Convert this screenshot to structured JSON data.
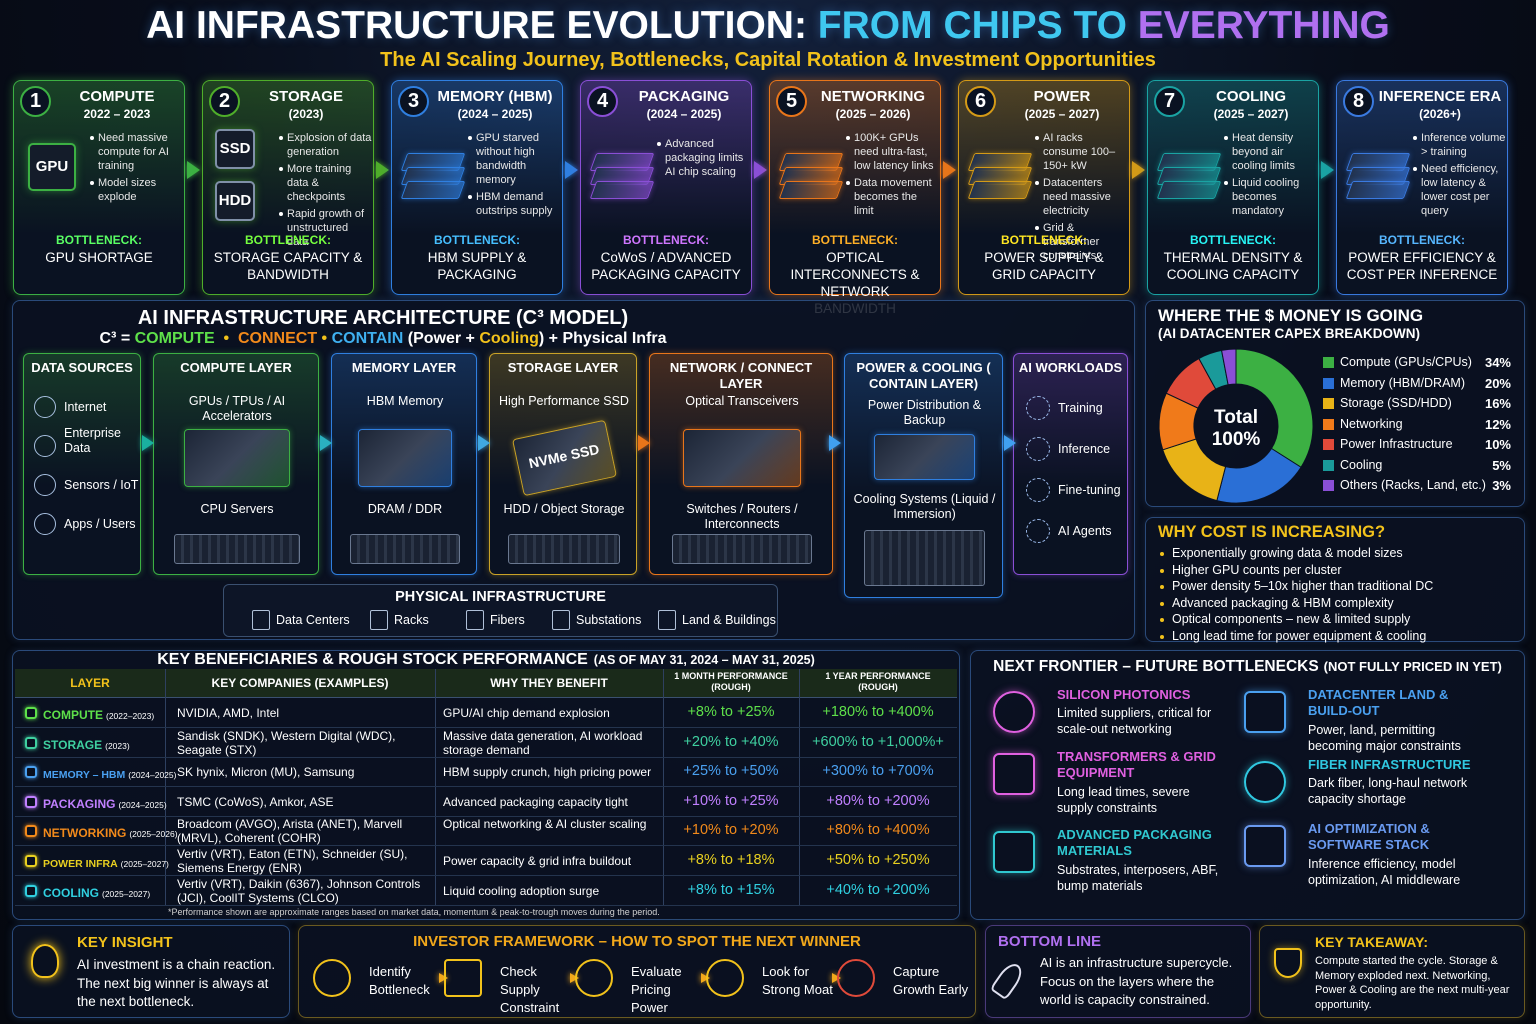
{
  "header": {
    "title_parts": [
      {
        "text": "AI INFRASTRUCTURE EVOLUTION: ",
        "color": "#ffffff"
      },
      {
        "text": "FROM CHIPS TO ",
        "color": "#3fc8f0"
      },
      {
        "text": "EVERYTHING",
        "color": "#b070f0"
      }
    ],
    "subtitle": "The AI Scaling Journey, Bottlenecks, Capital Rotation & Investment Opportunities"
  },
  "stages": [
    {
      "number": "1",
      "title": "COMPUTE",
      "years": "2022 – 2023",
      "color": "#3cb043",
      "icon_labels": [
        "GPU"
      ],
      "bullets": [
        "Need massive compute for AI training",
        "Model sizes explode"
      ],
      "bottleneck_label": "BOTTLENECK:",
      "bottleneck": "GPU SHORTAGE"
    },
    {
      "number": "2",
      "title": "STORAGE",
      "years": "(2023)",
      "color": "#4fae2a",
      "icon_labels": [
        "SSD",
        "HDD"
      ],
      "bullets": [
        "Explosion of data generation",
        "More training data & checkpoints",
        "Rapid growth of unstructured data"
      ],
      "bottleneck_label": "BOTTLENECK:",
      "bottleneck": "STORAGE CAPACITY & BANDWIDTH"
    },
    {
      "number": "3",
      "title": "MEMORY (HBM)",
      "years": "(2024 – 2025)",
      "color": "#2f7fe0",
      "bullets": [
        "GPU starved without high bandwidth memory",
        "HBM demand outstrips supply"
      ],
      "bottleneck_label": "BOTTLENECK:",
      "bottleneck": "HBM SUPPLY & PACKAGING"
    },
    {
      "number": "4",
      "title": "PACKAGING",
      "years": "(2024 – 2025)",
      "color": "#8a4fd6",
      "bullets": [
        "Advanced packaging limits AI chip scaling"
      ],
      "bottleneck_label": "BOTTLENECK:",
      "bottleneck": "CoWoS / ADVANCED PACKAGING CAPACITY"
    },
    {
      "number": "5",
      "title": "NETWORKING",
      "years": "(2025 – 2026)",
      "color": "#e8751a",
      "bullets": [
        "100K+ GPUs need ultra-fast, low latency links",
        "Data movement becomes the limit"
      ],
      "bottleneck_label": "BOTTLENECK:",
      "bottleneck": "OPTICAL INTERCONNECTS & NETWORK BANDWIDTH"
    },
    {
      "number": "6",
      "title": "POWER",
      "years": "(2025 – 2027)",
      "color": "#d49a17",
      "bullets": [
        "AI racks consume 100–150+ kW",
        "Datacenters need massive electricity",
        "Grid & transformer constraints"
      ],
      "bottleneck_label": "BOTTLENECK:",
      "bottleneck": "POWER SUPPLY & GRID CAPACITY"
    },
    {
      "number": "7",
      "title": "COOLING",
      "years": "(2025 – 2027)",
      "color": "#1aa3a3",
      "bullets": [
        "Heat density beyond air cooling limits",
        "Liquid cooling becomes mandatory"
      ],
      "bottleneck_label": "BOTTLENECK:",
      "bottleneck": "THERMAL DENSITY & COOLING CAPACITY"
    },
    {
      "number": "8",
      "title": "INFERENCE ERA",
      "years": "(2026+)",
      "color": "#3a7ae0",
      "bullets": [
        "Inference volume > training",
        "Need efficiency, low latency & lower cost per query"
      ],
      "bottleneck_label": "BOTTLENECK:",
      "bottleneck": "POWER EFFICIENCY & COST PER INFERENCE"
    }
  ],
  "architecture": {
    "title": "AI INFRASTRUCTURE ARCHITECTURE (C³ MODEL)",
    "formula_parts": [
      {
        "text": "C³ = ",
        "color": "#ffffff"
      },
      {
        "text": "COMPUTE",
        "color": "#5ee04a"
      },
      {
        "text": "  •  ",
        "color": "#f2c21b"
      },
      {
        "text": "CONNECT",
        "color": "#f28a1b"
      },
      {
        "text": " • ",
        "color": "#f2c21b"
      },
      {
        "text": "CONTAIN",
        "color": "#3fb0f0"
      },
      {
        "text": " (Power + ",
        "color": "#ffffff"
      },
      {
        "text": "Cooling",
        "color": "#f2c21b"
      },
      {
        "text": ") + Physical Infra",
        "color": "#ffffff"
      }
    ],
    "data_sources": {
      "title": "DATA SOURCES",
      "color": "#3cb043",
      "items": [
        "Internet",
        "Enterprise Data",
        "Sensors / IoT",
        "Apps / Users"
      ]
    },
    "layers": [
      {
        "title": "COMPUTE LAYER",
        "color": "#3cb043",
        "items": [
          "GPUs / TPUs / AI Accelerators",
          "CPU Servers"
        ]
      },
      {
        "title": "MEMORY LAYER",
        "color": "#2f7fe0",
        "items": [
          "HBM Memory",
          "DRAM / DDR"
        ]
      },
      {
        "title": "STORAGE LAYER",
        "color": "#c9a227",
        "items": [
          "High Performance SSD",
          "HDD / Object Storage"
        ],
        "image_label": "NVMe SSD"
      },
      {
        "title": "NETWORK / CONNECT LAYER",
        "color": "#e8751a",
        "items": [
          "Optical Transceivers",
          "Switches / Routers / Interconnects"
        ]
      },
      {
        "title": "POWER & COOLING ( CONTAIN LAYER)",
        "color": "#2f7fe0",
        "items": [
          "Power Distribution & Backup",
          "Cooling Systems (Liquid / Immersion)"
        ]
      }
    ],
    "workloads": {
      "title": "AI WORKLOADS",
      "color": "#8a4fd6",
      "items": [
        "Training",
        "Inference",
        "Fine-tuning",
        "AI Agents"
      ]
    },
    "physical": {
      "title": "PHYSICAL INFRASTRUCTURE",
      "items": [
        "Data Centers",
        "Racks",
        "Fibers",
        "Substations",
        "Land & Buildings"
      ]
    }
  },
  "chart_data": {
    "type": "pie",
    "title": "WHERE THE $ MONEY IS GOING",
    "subtitle": "(AI DATACENTER CAPEX BREAKDOWN)",
    "center_text": [
      "Total",
      "100%"
    ],
    "categories": [
      "Compute (GPUs/CPUs)",
      "Memory (HBM/DRAM)",
      "Storage (SSD/HDD)",
      "Networking",
      "Power Infrastructure",
      "Cooling",
      "Others (Racks, Land, etc.)"
    ],
    "values": [
      34,
      20,
      16,
      12,
      10,
      5,
      3
    ],
    "value_labels": [
      "34%",
      "20%",
      "16%",
      "12%",
      "10%",
      "5%",
      "3%"
    ],
    "colors": [
      "#3cb043",
      "#2a6fd6",
      "#e8b317",
      "#f07a1a",
      "#e04a3a",
      "#1a9a9a",
      "#8a4fd6"
    ]
  },
  "why_cost": {
    "title": "WHY COST IS INCREASING?",
    "bullets": [
      "Exponentially growing data & model sizes",
      "Higher GPU counts per cluster",
      "Power density 5–10x higher than traditional DC",
      "Advanced packaging & HBM complexity",
      "Optical components – new & limited supply",
      "Long lead time for power equipment & cooling"
    ]
  },
  "table": {
    "title": "KEY BENEFICIARIES & ROUGH STOCK PERFORMANCE",
    "title_note": "(AS OF MAY 31, 2024 – MAY 31, 2025)",
    "headers": [
      "LAYER",
      "KEY COMPANIES (EXAMPLES)",
      "WHY THEY BENEFIT",
      "1 MONTH PERFORMANCE (ROUGH)",
      "1 YEAR PERFORMANCE (ROUGH)"
    ],
    "rows": [
      {
        "layer": "COMPUTE",
        "period": "(2022–2023)",
        "color": "#5ee04a",
        "companies": "NVIDIA, AMD, Intel",
        "why": "GPU/AI chip demand explosion",
        "month": "+8% to +25%",
        "year": "+180% to +400%"
      },
      {
        "layer": "STORAGE",
        "period": "(2023)",
        "color": "#3fd0a0",
        "companies": "Sandisk (SNDK), Western Digital (WDC), Seagate (STX)",
        "why": "Massive data generation, AI workload storage demand",
        "month": "+20% to +40%",
        "year": "+600% to +1,000%+"
      },
      {
        "layer": "MEMORY – HBM",
        "period": "(2024–2025)",
        "color": "#4aa0f0",
        "companies": "SK hynix, Micron (MU), Samsung",
        "why": "HBM supply crunch, high pricing power",
        "month": "+25% to +50%",
        "year": "+300% to +700%"
      },
      {
        "layer": "PACKAGING",
        "period": "(2024–2025)",
        "color": "#c080ff",
        "companies": "TSMC (CoWoS), Amkor, ASE",
        "why": "Advanced packaging capacity tight",
        "month": "+10% to +25%",
        "year": "+80% to +200%"
      },
      {
        "layer": "NETWORKING",
        "period": "(2025–2026)",
        "color": "#f28a1b",
        "companies": "Broadcom (AVGO), Arista (ANET), Marvell (MRVL), Coherent (COHR)",
        "why": "Optical networking & AI cluster scaling",
        "month": "+10% to +20%",
        "year": "+80% to +400%"
      },
      {
        "layer": "POWER INFRA",
        "period": "(2025–2027)",
        "color": "#e8d020",
        "companies": "Vertiv (VRT), Eaton (ETN), Schneider (SU), Siemens Energy (ENR)",
        "why": "Power capacity & grid infra buildout",
        "month": "+8% to +18%",
        "year": "+50% to +250%"
      },
      {
        "layer": "COOLING",
        "period": "(2025–2027)",
        "color": "#30d0e0",
        "companies": "Vertiv (VRT), Daikin (6367), Johnson Controls (JCI), CoolIT Systems (CLCO)",
        "why": "Liquid cooling adoption surge",
        "month": "+8% to +15%",
        "year": "+40% to +200%"
      }
    ],
    "footnote": "*Performance shown are approximate ranges based on market data, momentum & peak-to-trough moves during the period."
  },
  "frontier": {
    "title": "NEXT FRONTIER – FUTURE BOTTLENECKS",
    "title_note": "(NOT FULLY PRICED IN YET)",
    "items": [
      {
        "title": "SILICON PHOTONICS",
        "text": "Limited suppliers, critical for scale-out networking",
        "color": "#e060e0"
      },
      {
        "title": "TRANSFORMERS & GRID EQUIPMENT",
        "text": "Long lead times, severe supply constraints",
        "color": "#e060e0"
      },
      {
        "title": "ADVANCED PACKAGING MATERIALS",
        "text": "Substrates, interposers, ABF, bump materials",
        "color": "#30c8d0"
      },
      {
        "title": "DATACENTER LAND & BUILD-OUT",
        "text": "Power, land, permitting becoming major constraints",
        "color": "#4aa0f0"
      },
      {
        "title": "FIBER INFRASTRUCTURE",
        "text": "Dark fiber, long-haul network capacity shortage",
        "color": "#30c8e0"
      },
      {
        "title": "AI OPTIMIZATION & SOFTWARE STACK",
        "text": "Inference efficiency, model optimization, AI middleware",
        "color": "#6a9af0"
      }
    ]
  },
  "key_insight": {
    "title": "KEY INSIGHT",
    "text": "AI investment is a chain reaction. The next big winner is always at the next bottleneck."
  },
  "framework": {
    "title": "INVESTOR FRAMEWORK – HOW TO SPOT THE NEXT WINNER",
    "steps": [
      "Identify Bottleneck",
      "Check Supply Constraint",
      "Evaluate Pricing Power",
      "Look for Strong Moat",
      "Capture Growth Early"
    ]
  },
  "bottom_line": {
    "title": "BOTTOM LINE",
    "text": "AI is an infrastructure supercycle. Focus on the layers where the world is capacity constrained."
  },
  "key_takeaway": {
    "title": "KEY TAKEAWAY:",
    "text": "Compute started the cycle. Storage & Memory exploded next. Networking, Power & Cooling are the next multi-year opportunity."
  }
}
